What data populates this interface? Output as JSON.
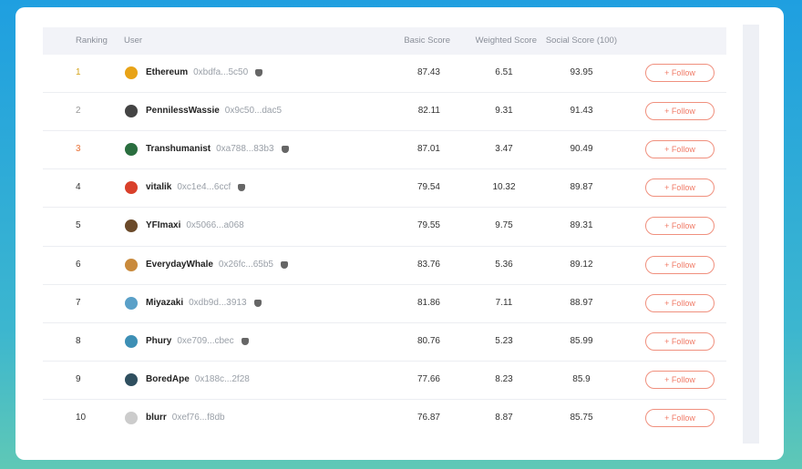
{
  "table": {
    "headers": [
      "Ranking",
      "User",
      "Basic Score",
      "Weighted Score",
      "Social Score (100)"
    ],
    "follow_label": "+ Follow",
    "rows": [
      [
        "1",
        "Ethereum",
        "0xbdfa...5c50",
        "87.43",
        "6.51",
        "93.95"
      ],
      [
        "2",
        "PennilessWassie",
        "0x9c50...dac5",
        "82.11",
        "9.31",
        "91.43"
      ],
      [
        "3",
        "Transhumanist",
        "0xa788...83b3",
        "87.01",
        "3.47",
        "90.49"
      ],
      [
        "4",
        "vitalik",
        "0xc1e4...6ccf",
        "79.54",
        "10.32",
        "89.87"
      ],
      [
        "5",
        "YFImaxi",
        "0x5066...a068",
        "79.55",
        "9.75",
        "89.31"
      ],
      [
        "6",
        "EverydayWhale",
        "0x26fc...65b5",
        "83.76",
        "5.36",
        "89.12"
      ],
      [
        "7",
        "Miyazaki",
        "0xdb9d...3913",
        "81.86",
        "7.11",
        "88.97"
      ],
      [
        "8",
        "Phury",
        "0xe709...cbec",
        "80.76",
        "5.23",
        "85.99"
      ],
      [
        "9",
        "BoredApe",
        "0x188c...2f28",
        "77.66",
        "8.23",
        "85.9"
      ],
      [
        "10",
        "blurr",
        "0xef76...f8db",
        "76.87",
        "8.87",
        "85.75"
      ]
    ]
  }
}
